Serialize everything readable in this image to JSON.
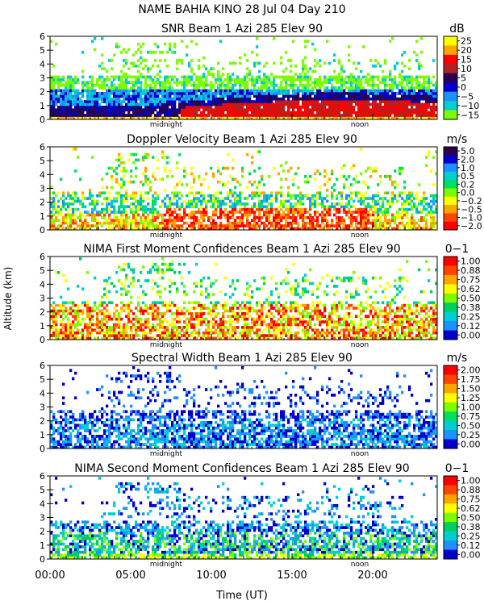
{
  "figure": {
    "title": "NAME BAHIA KINO  28 Jul 04 Day 210",
    "ylabel": "Altitude (km)",
    "xlabel": "Time (UT)",
    "x_ticks": [
      "00:00",
      "05:00",
      "10:00",
      "15:00",
      "20:00"
    ],
    "x_tick_hours": [
      0,
      5,
      10,
      15,
      20
    ],
    "marker_midnight": "midnight",
    "marker_noon": "noon",
    "marker_midnight_hour": 7.2,
    "marker_noon_hour": 19.2
  },
  "chart_data": [
    {
      "type": "heatmap",
      "title": "SNR Beam 1 Azi 285 Elev 90",
      "unit": "dB",
      "x_range_hours": [
        0,
        24
      ],
      "ylim": [
        0,
        6
      ],
      "y_ticks": [
        0,
        1,
        2,
        3,
        4,
        5,
        6
      ],
      "scale_labels": [
        "25",
        "20",
        "15",
        "10",
        "5",
        "0",
        "−5",
        "−10",
        "−15"
      ],
      "colors": [
        "#ffff00",
        "#ffa500",
        "#ff0000",
        "#b22222",
        "#2a0050",
        "#0000cd",
        "#1e90ff",
        "#00ced1",
        "#7cfc00"
      ]
    },
    {
      "type": "heatmap",
      "title": "Doppler Velocity Beam 1 Azi 285 Elev 90",
      "unit": "m/s",
      "x_range_hours": [
        0,
        24
      ],
      "ylim": [
        0,
        6
      ],
      "y_ticks": [
        0,
        1,
        2,
        3,
        4,
        5,
        6
      ],
      "scale_labels": [
        "5.0",
        "2.0",
        "1.0",
        "0.5",
        "0.2",
        "0.0",
        "−0.2",
        "−0.5",
        "−1.0",
        "−2.0"
      ],
      "colors": [
        "#2a0050",
        "#0000cd",
        "#1e90ff",
        "#00ced1",
        "#00e060",
        "#7cfc00",
        "#ffff00",
        "#ffa500",
        "#ff4500",
        "#ff0000"
      ]
    },
    {
      "type": "heatmap",
      "title": "NIMA First Moment Confidences Beam 1 Azi 285 Elev 90",
      "unit": "0−1",
      "x_range_hours": [
        0,
        24
      ],
      "ylim": [
        0,
        6
      ],
      "y_ticks": [
        0,
        1,
        2,
        3,
        4,
        5,
        6
      ],
      "scale_labels": [
        "1.00",
        "0.88",
        "0.75",
        "0.62",
        "0.50",
        "0.38",
        "0.25",
        "0.12",
        "0.00"
      ],
      "colors": [
        "#ff0000",
        "#ff4500",
        "#ffa500",
        "#ffff00",
        "#7cfc00",
        "#00ce60",
        "#00ced1",
        "#1e90ff",
        "#0000cd"
      ]
    },
    {
      "type": "heatmap",
      "title": "Spectral Width Beam 1 Azi 285 Elev 90",
      "unit": "m/s",
      "x_range_hours": [
        0,
        24
      ],
      "ylim": [
        0,
        6
      ],
      "y_ticks": [
        0,
        1,
        2,
        3,
        4,
        5,
        6
      ],
      "scale_labels": [
        "2.00",
        "1.75",
        "1.50",
        "1.25",
        "1.00",
        "0.75",
        "0.50",
        "0.25",
        "0.00"
      ],
      "colors": [
        "#ff0000",
        "#ff4500",
        "#ffa500",
        "#ffff00",
        "#7cfc00",
        "#00e060",
        "#00ced1",
        "#1e90ff",
        "#0000cd"
      ]
    },
    {
      "type": "heatmap",
      "title": "NIMA Second Moment Confidences Beam 1 Azi 285 Elev 90",
      "unit": "0−1",
      "x_range_hours": [
        0,
        24
      ],
      "ylim": [
        0,
        6
      ],
      "y_ticks": [
        0,
        1,
        2,
        3,
        4,
        5,
        6
      ],
      "scale_labels": [
        "1.00",
        "0.88",
        "0.75",
        "0.62",
        "0.50",
        "0.38",
        "0.25",
        "0.12",
        "0.00"
      ],
      "colors": [
        "#ff0000",
        "#ff4500",
        "#ffa500",
        "#ffff00",
        "#7cfc00",
        "#00ce60",
        "#00ced1",
        "#1e90ff",
        "#0000cd"
      ]
    }
  ]
}
